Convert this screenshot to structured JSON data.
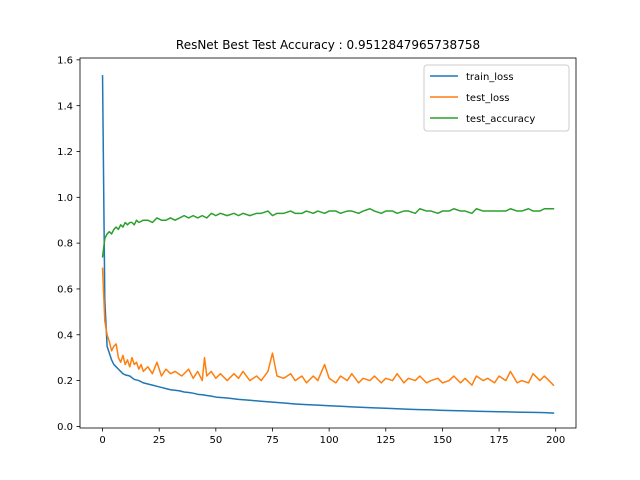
{
  "chart_data": {
    "type": "line",
    "title": "ResNet Best Test Accuracy : 0.9512847965738758",
    "xlabel": "",
    "ylabel": "",
    "xlim": [
      -9.95,
      208.95
    ],
    "ylim": [
      -0.007,
      1.6081
    ],
    "x_ticks": [
      0,
      25,
      50,
      75,
      100,
      125,
      150,
      175,
      200
    ],
    "y_ticks": [
      0.0,
      0.2,
      0.4,
      0.6,
      0.8,
      1.0,
      1.2,
      1.4,
      1.6
    ],
    "x_tick_labels": [
      "0",
      "25",
      "50",
      "75",
      "100",
      "125",
      "150",
      "175",
      "200"
    ],
    "y_tick_labels": [
      "0.0",
      "0.2",
      "0.4",
      "0.6",
      "0.8",
      "1.0",
      "1.2",
      "1.4",
      "1.6"
    ],
    "grid": false,
    "legend_position": "top-right",
    "series": [
      {
        "name": "train_loss",
        "color": "#1f77b4",
        "points": [
          [
            0,
            1.53
          ],
          [
            1,
            0.55
          ],
          [
            2,
            0.35
          ],
          [
            3,
            0.32
          ],
          [
            4,
            0.29
          ],
          [
            5,
            0.27
          ],
          [
            6,
            0.26
          ],
          [
            7,
            0.25
          ],
          [
            8,
            0.24
          ],
          [
            9,
            0.23
          ],
          [
            10,
            0.225
          ],
          [
            12,
            0.22
          ],
          [
            14,
            0.205
          ],
          [
            16,
            0.2
          ],
          [
            18,
            0.19
          ],
          [
            20,
            0.185
          ],
          [
            22,
            0.18
          ],
          [
            24,
            0.175
          ],
          [
            26,
            0.17
          ],
          [
            28,
            0.165
          ],
          [
            30,
            0.16
          ],
          [
            32,
            0.158
          ],
          [
            34,
            0.155
          ],
          [
            36,
            0.15
          ],
          [
            38,
            0.148
          ],
          [
            40,
            0.145
          ],
          [
            42,
            0.14
          ],
          [
            44,
            0.138
          ],
          [
            46,
            0.135
          ],
          [
            48,
            0.132
          ],
          [
            50,
            0.128
          ],
          [
            55,
            0.124
          ],
          [
            60,
            0.118
          ],
          [
            65,
            0.114
          ],
          [
            70,
            0.11
          ],
          [
            75,
            0.106
          ],
          [
            80,
            0.102
          ],
          [
            85,
            0.098
          ],
          [
            90,
            0.095
          ],
          [
            95,
            0.093
          ],
          [
            100,
            0.09
          ],
          [
            105,
            0.088
          ],
          [
            110,
            0.085
          ],
          [
            115,
            0.083
          ],
          [
            120,
            0.081
          ],
          [
            125,
            0.079
          ],
          [
            130,
            0.077
          ],
          [
            135,
            0.075
          ],
          [
            140,
            0.073
          ],
          [
            145,
            0.072
          ],
          [
            150,
            0.07
          ],
          [
            155,
            0.069
          ],
          [
            160,
            0.068
          ],
          [
            165,
            0.066
          ],
          [
            170,
            0.065
          ],
          [
            175,
            0.064
          ],
          [
            180,
            0.063
          ],
          [
            185,
            0.062
          ],
          [
            190,
            0.061
          ],
          [
            195,
            0.06
          ],
          [
            199,
            0.058
          ]
        ]
      },
      {
        "name": "test_loss",
        "color": "#ff7f0e",
        "points": [
          [
            0,
            0.69
          ],
          [
            1,
            0.46
          ],
          [
            2,
            0.4
          ],
          [
            3,
            0.37
          ],
          [
            4,
            0.33
          ],
          [
            5,
            0.35
          ],
          [
            6,
            0.36
          ],
          [
            7,
            0.3
          ],
          [
            8,
            0.28
          ],
          [
            9,
            0.31
          ],
          [
            10,
            0.27
          ],
          [
            11,
            0.29
          ],
          [
            12,
            0.26
          ],
          [
            13,
            0.3
          ],
          [
            14,
            0.27
          ],
          [
            15,
            0.28
          ],
          [
            16,
            0.25
          ],
          [
            17,
            0.27
          ],
          [
            18,
            0.24
          ],
          [
            20,
            0.26
          ],
          [
            22,
            0.23
          ],
          [
            24,
            0.28
          ],
          [
            26,
            0.22
          ],
          [
            28,
            0.25
          ],
          [
            30,
            0.23
          ],
          [
            32,
            0.24
          ],
          [
            35,
            0.22
          ],
          [
            38,
            0.25
          ],
          [
            40,
            0.21
          ],
          [
            42,
            0.24
          ],
          [
            44,
            0.2
          ],
          [
            45,
            0.3
          ],
          [
            46,
            0.22
          ],
          [
            48,
            0.24
          ],
          [
            50,
            0.21
          ],
          [
            52,
            0.23
          ],
          [
            55,
            0.2
          ],
          [
            58,
            0.23
          ],
          [
            60,
            0.21
          ],
          [
            62,
            0.24
          ],
          [
            65,
            0.2
          ],
          [
            68,
            0.22
          ],
          [
            70,
            0.2
          ],
          [
            73,
            0.24
          ],
          [
            75,
            0.32
          ],
          [
            77,
            0.22
          ],
          [
            80,
            0.21
          ],
          [
            83,
            0.23
          ],
          [
            85,
            0.2
          ],
          [
            88,
            0.22
          ],
          [
            90,
            0.19
          ],
          [
            93,
            0.22
          ],
          [
            95,
            0.2
          ],
          [
            98,
            0.27
          ],
          [
            100,
            0.21
          ],
          [
            103,
            0.19
          ],
          [
            105,
            0.22
          ],
          [
            108,
            0.2
          ],
          [
            110,
            0.23
          ],
          [
            113,
            0.19
          ],
          [
            115,
            0.21
          ],
          [
            118,
            0.2
          ],
          [
            120,
            0.22
          ],
          [
            123,
            0.19
          ],
          [
            125,
            0.21
          ],
          [
            128,
            0.2
          ],
          [
            130,
            0.23
          ],
          [
            133,
            0.19
          ],
          [
            135,
            0.21
          ],
          [
            138,
            0.2
          ],
          [
            140,
            0.22
          ],
          [
            143,
            0.19
          ],
          [
            145,
            0.2
          ],
          [
            148,
            0.21
          ],
          [
            150,
            0.19
          ],
          [
            153,
            0.2
          ],
          [
            155,
            0.22
          ],
          [
            158,
            0.19
          ],
          [
            160,
            0.21
          ],
          [
            163,
            0.18
          ],
          [
            165,
            0.22
          ],
          [
            168,
            0.2
          ],
          [
            170,
            0.21
          ],
          [
            173,
            0.19
          ],
          [
            175,
            0.22
          ],
          [
            178,
            0.2
          ],
          [
            180,
            0.24
          ],
          [
            183,
            0.19
          ],
          [
            185,
            0.2
          ],
          [
            188,
            0.19
          ],
          [
            190,
            0.23
          ],
          [
            193,
            0.2
          ],
          [
            195,
            0.22
          ],
          [
            197,
            0.2
          ],
          [
            199,
            0.18
          ]
        ]
      },
      {
        "name": "test_accuracy",
        "color": "#2ca02c",
        "points": [
          [
            0,
            0.74
          ],
          [
            1,
            0.82
          ],
          [
            2,
            0.84
          ],
          [
            3,
            0.85
          ],
          [
            4,
            0.84
          ],
          [
            5,
            0.86
          ],
          [
            6,
            0.87
          ],
          [
            7,
            0.86
          ],
          [
            8,
            0.88
          ],
          [
            9,
            0.87
          ],
          [
            10,
            0.89
          ],
          [
            11,
            0.88
          ],
          [
            12,
            0.89
          ],
          [
            13,
            0.89
          ],
          [
            14,
            0.88
          ],
          [
            15,
            0.9
          ],
          [
            16,
            0.89
          ],
          [
            18,
            0.9
          ],
          [
            20,
            0.9
          ],
          [
            22,
            0.89
          ],
          [
            24,
            0.91
          ],
          [
            26,
            0.9
          ],
          [
            28,
            0.9
          ],
          [
            30,
            0.91
          ],
          [
            32,
            0.9
          ],
          [
            34,
            0.91
          ],
          [
            36,
            0.92
          ],
          [
            38,
            0.91
          ],
          [
            40,
            0.92
          ],
          [
            42,
            0.91
          ],
          [
            44,
            0.92
          ],
          [
            46,
            0.91
          ],
          [
            48,
            0.93
          ],
          [
            50,
            0.92
          ],
          [
            52,
            0.93
          ],
          [
            55,
            0.92
          ],
          [
            58,
            0.93
          ],
          [
            60,
            0.92
          ],
          [
            62,
            0.93
          ],
          [
            65,
            0.92
          ],
          [
            68,
            0.93
          ],
          [
            70,
            0.93
          ],
          [
            73,
            0.94
          ],
          [
            75,
            0.92
          ],
          [
            77,
            0.93
          ],
          [
            80,
            0.93
          ],
          [
            83,
            0.94
          ],
          [
            85,
            0.93
          ],
          [
            88,
            0.93
          ],
          [
            90,
            0.94
          ],
          [
            93,
            0.93
          ],
          [
            95,
            0.94
          ],
          [
            98,
            0.93
          ],
          [
            100,
            0.94
          ],
          [
            103,
            0.94
          ],
          [
            105,
            0.93
          ],
          [
            108,
            0.94
          ],
          [
            110,
            0.94
          ],
          [
            113,
            0.93
          ],
          [
            115,
            0.94
          ],
          [
            118,
            0.95
          ],
          [
            120,
            0.94
          ],
          [
            123,
            0.93
          ],
          [
            125,
            0.94
          ],
          [
            128,
            0.94
          ],
          [
            130,
            0.93
          ],
          [
            133,
            0.94
          ],
          [
            135,
            0.94
          ],
          [
            138,
            0.93
          ],
          [
            140,
            0.95
          ],
          [
            143,
            0.94
          ],
          [
            145,
            0.94
          ],
          [
            148,
            0.93
          ],
          [
            150,
            0.94
          ],
          [
            153,
            0.94
          ],
          [
            155,
            0.95
          ],
          [
            158,
            0.94
          ],
          [
            160,
            0.94
          ],
          [
            163,
            0.93
          ],
          [
            165,
            0.95
          ],
          [
            168,
            0.94
          ],
          [
            170,
            0.94
          ],
          [
            173,
            0.94
          ],
          [
            175,
            0.94
          ],
          [
            178,
            0.94
          ],
          [
            180,
            0.95
          ],
          [
            183,
            0.94
          ],
          [
            185,
            0.94
          ],
          [
            188,
            0.95
          ],
          [
            190,
            0.94
          ],
          [
            193,
            0.94
          ],
          [
            195,
            0.95
          ],
          [
            197,
            0.95
          ],
          [
            199,
            0.95
          ]
        ]
      }
    ]
  }
}
